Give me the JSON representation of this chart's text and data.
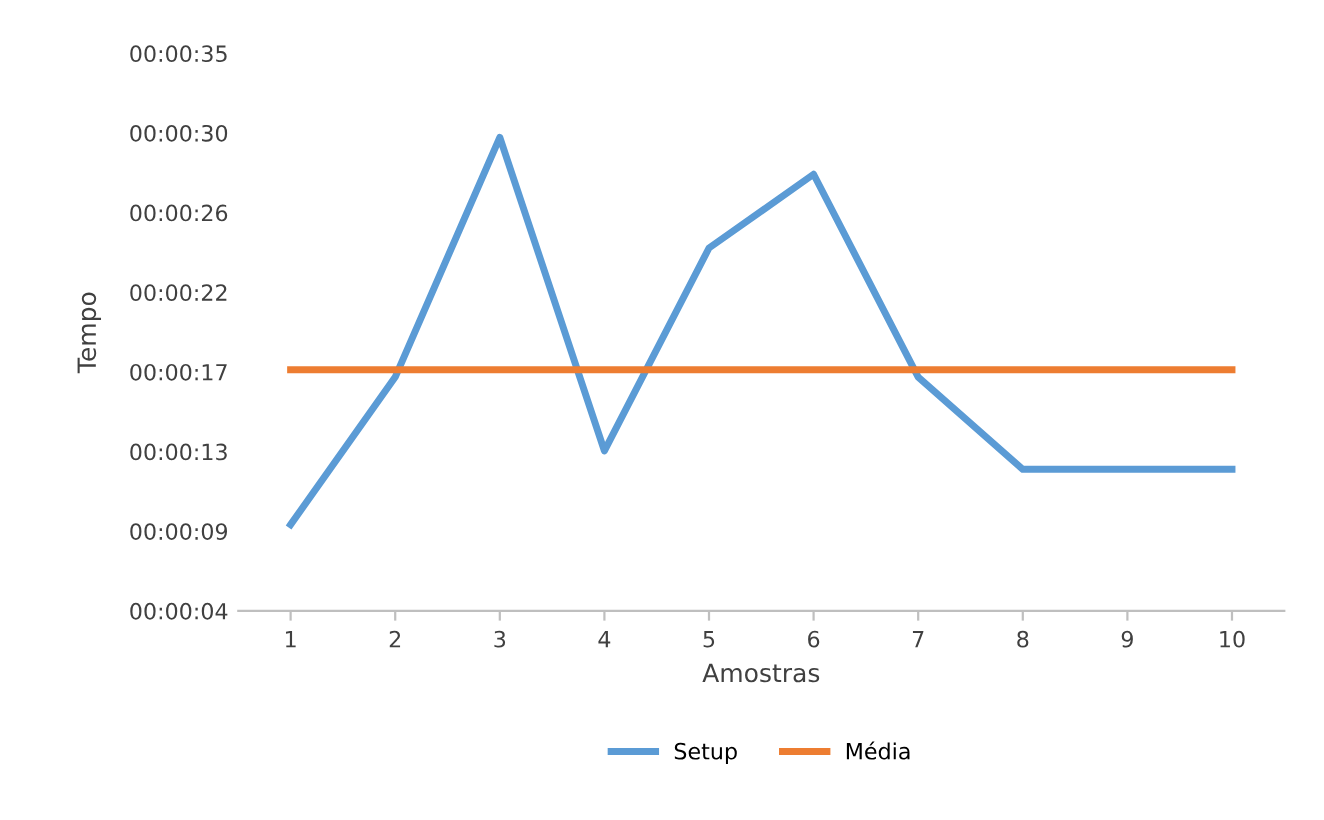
{
  "chart_data": {
    "type": "line",
    "xlabel": "Amostras",
    "ylabel": "Tempo",
    "categories": [
      "1",
      "2",
      "3",
      "4",
      "5",
      "6",
      "7",
      "8",
      "9",
      "10"
    ],
    "series": [
      {
        "name": "Setup",
        "color": "#5b9bd5",
        "values": [
          9,
          17,
          30,
          13,
          24,
          28,
          17,
          12,
          12,
          12
        ]
      },
      {
        "name": "Média",
        "color": "#ed7d31",
        "values": [
          17.4,
          17.4,
          17.4,
          17.4,
          17.4,
          17.4,
          17.4,
          17.4,
          17.4,
          17.4
        ]
      }
    ],
    "ylim": [
      4.32,
      34.56
    ],
    "yticks": [
      {
        "value": 4.32,
        "label": "00:00:04"
      },
      {
        "value": 8.64,
        "label": "00:00:09"
      },
      {
        "value": 12.96,
        "label": "00:00:13"
      },
      {
        "value": 17.28,
        "label": "00:00:17"
      },
      {
        "value": 21.6,
        "label": "00:00:22"
      },
      {
        "value": 25.92,
        "label": "00:00:26"
      },
      {
        "value": 30.24,
        "label": "00:00:30"
      },
      {
        "value": 34.56,
        "label": "00:00:35"
      }
    ],
    "grid": false,
    "legend": "bottom",
    "marker": "none",
    "line_style": "solid"
  }
}
